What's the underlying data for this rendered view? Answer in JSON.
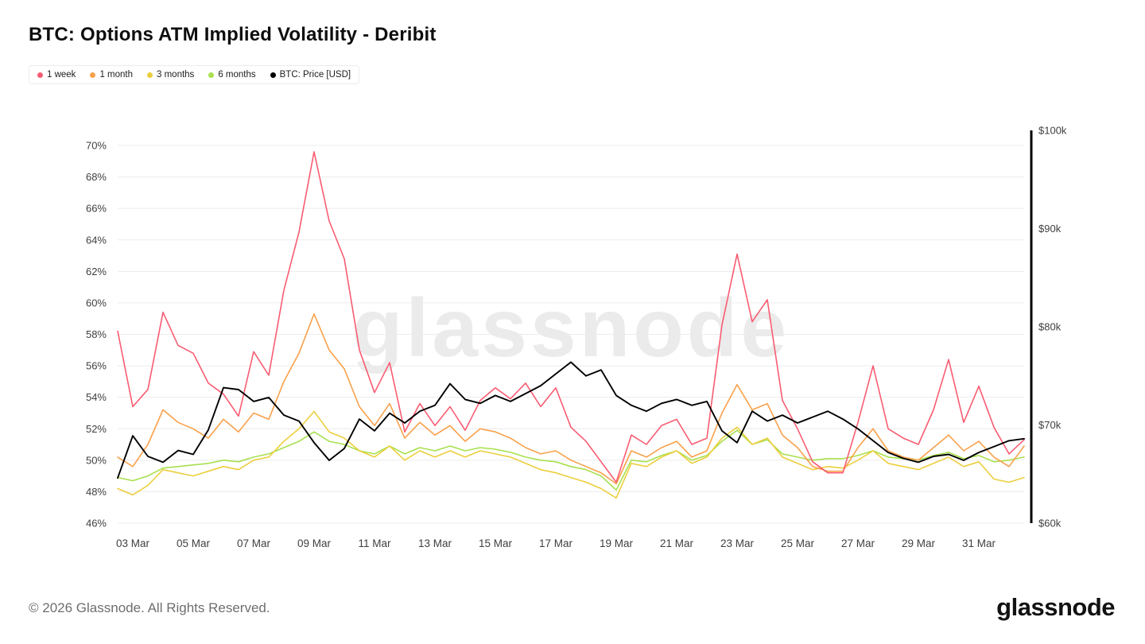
{
  "page": {
    "watermark": "glassnode",
    "footer_copyright": "© 2026 Glassnode. All Rights Reserved.",
    "brand_logo_text": "glassnode"
  },
  "chart_data": {
    "type": "line",
    "title": "BTC: Options ATM Implied Volatility - Deribit",
    "grid": "horizontal",
    "legend_position": "top-left",
    "left_axis": {
      "unit": "%",
      "ticks": [
        70,
        68,
        66,
        64,
        62,
        60,
        58,
        56,
        54,
        52,
        50,
        48,
        46
      ],
      "range": [
        46,
        70
      ]
    },
    "right_axis": {
      "unit": "USD",
      "tick_labels": [
        "$100k",
        "$90k",
        "$80k",
        "$70k",
        "$60k"
      ],
      "tick_values_k": [
        100,
        90,
        80,
        70,
        60
      ],
      "range_k": [
        60,
        100
      ]
    },
    "x_axis": {
      "tick_labels": [
        "03 Mar",
        "05 Mar",
        "07 Mar",
        "09 Mar",
        "11 Mar",
        "13 Mar",
        "15 Mar",
        "17 Mar",
        "19 Mar",
        "21 Mar",
        "23 Mar",
        "25 Mar",
        "27 Mar",
        "29 Mar",
        "31 Mar"
      ],
      "first_tick_day_offset": 0.5,
      "tick_step_days": 2,
      "domain_days": [
        0,
        30
      ]
    },
    "sample_step_days": 0.5,
    "series": [
      {
        "name": "6 months",
        "color": "#a8e04e",
        "axis": "left",
        "values": [
          48.9,
          48.7,
          49.0,
          49.5,
          49.6,
          49.7,
          49.8,
          50.0,
          49.9,
          50.2,
          50.4,
          50.8,
          51.2,
          51.8,
          51.2,
          51.0,
          50.6,
          50.4,
          50.9,
          50.4,
          50.8,
          50.6,
          50.9,
          50.6,
          50.8,
          50.7,
          50.5,
          50.2,
          50.0,
          49.9,
          49.6,
          49.4,
          49.0,
          48.1,
          50.0,
          49.9,
          50.3,
          50.6,
          50.0,
          50.3,
          51.2,
          51.9,
          51.0,
          51.3,
          50.4,
          50.2,
          50.0,
          50.1,
          50.1,
          50.3,
          50.6,
          50.2,
          50.1,
          50.0,
          50.3,
          50.5,
          50.1,
          50.3,
          49.9,
          50.0,
          50.2
        ]
      },
      {
        "name": "3 months",
        "color": "#eccf3e",
        "axis": "left",
        "values": [
          48.2,
          47.8,
          48.4,
          49.4,
          49.2,
          49.0,
          49.3,
          49.6,
          49.4,
          50.0,
          50.2,
          51.2,
          52.0,
          53.1,
          51.8,
          51.4,
          50.6,
          50.2,
          50.9,
          50.0,
          50.6,
          50.2,
          50.6,
          50.2,
          50.6,
          50.4,
          50.2,
          49.8,
          49.4,
          49.2,
          48.9,
          48.6,
          48.2,
          47.6,
          49.8,
          49.6,
          50.2,
          50.6,
          49.8,
          50.2,
          51.4,
          52.1,
          51.0,
          51.4,
          50.2,
          49.8,
          49.4,
          49.6,
          49.5,
          50.0,
          50.6,
          49.8,
          49.6,
          49.4,
          49.8,
          50.2,
          49.6,
          49.9,
          48.8,
          48.6,
          48.9
        ]
      },
      {
        "name": "1 month",
        "color": "#f9a14b",
        "axis": "left",
        "values": [
          50.2,
          49.6,
          51.0,
          53.2,
          52.4,
          52.0,
          51.4,
          52.6,
          51.8,
          53.0,
          52.6,
          55.0,
          56.8,
          59.3,
          57.0,
          55.8,
          53.4,
          52.2,
          53.6,
          51.4,
          52.4,
          51.6,
          52.2,
          51.2,
          52.0,
          51.8,
          51.4,
          50.8,
          50.4,
          50.6,
          50.0,
          49.6,
          49.2,
          48.5,
          50.6,
          50.2,
          50.8,
          51.2,
          50.2,
          50.6,
          53.0,
          54.8,
          53.2,
          53.6,
          51.6,
          50.8,
          49.6,
          49.3,
          49.3,
          50.8,
          52.0,
          50.6,
          50.2,
          50.0,
          50.8,
          51.6,
          50.6,
          51.2,
          50.2,
          49.6,
          50.9
        ]
      },
      {
        "name": "1 week",
        "color": "#f95c72",
        "axis": "left",
        "values": [
          58.2,
          53.4,
          54.5,
          59.4,
          57.3,
          56.8,
          54.9,
          54.2,
          52.8,
          56.9,
          55.4,
          60.8,
          64.5,
          69.6,
          65.2,
          62.8,
          57.0,
          54.3,
          56.2,
          51.8,
          53.6,
          52.2,
          53.4,
          51.9,
          53.8,
          54.6,
          53.9,
          54.9,
          53.4,
          54.6,
          52.1,
          51.2,
          49.9,
          48.6,
          51.6,
          51.0,
          52.2,
          52.6,
          51.0,
          51.4,
          58.6,
          63.1,
          58.8,
          60.2,
          53.8,
          52.0,
          49.9,
          49.2,
          49.2,
          52.4,
          56.0,
          52.0,
          51.4,
          51.0,
          53.2,
          56.4,
          52.4,
          54.7,
          52.1,
          50.4,
          51.3
        ]
      },
      {
        "name": "BTC: Price [USD]",
        "color": "#000000",
        "axis": "right",
        "values": [
          64.6,
          68.9,
          66.8,
          66.2,
          67.4,
          67.0,
          69.5,
          73.8,
          73.6,
          72.4,
          72.8,
          71.0,
          70.4,
          68.2,
          66.4,
          67.6,
          70.6,
          69.4,
          71.2,
          70.2,
          71.4,
          72.0,
          74.2,
          72.6,
          72.2,
          73.0,
          72.4,
          73.2,
          74.0,
          75.2,
          76.4,
          75.0,
          75.6,
          73.0,
          72.0,
          71.4,
          72.2,
          72.6,
          72.0,
          72.4,
          69.4,
          68.2,
          71.4,
          70.4,
          71.0,
          70.2,
          70.8,
          71.4,
          70.6,
          69.6,
          68.4,
          67.2,
          66.6,
          66.2,
          66.8,
          67.0,
          66.4,
          67.2,
          67.8,
          68.4,
          68.6
        ]
      }
    ],
    "legend_order": [
      "1 week",
      "1 month",
      "3 months",
      "6 months",
      "BTC: Price [USD]"
    ],
    "style": {
      "grid_color": "#ececec",
      "axis_text_color": "#3f3f3f",
      "watermark_color": "#ebebeb",
      "right_axis_line_color": "#000000",
      "background": "#ffffff"
    }
  }
}
